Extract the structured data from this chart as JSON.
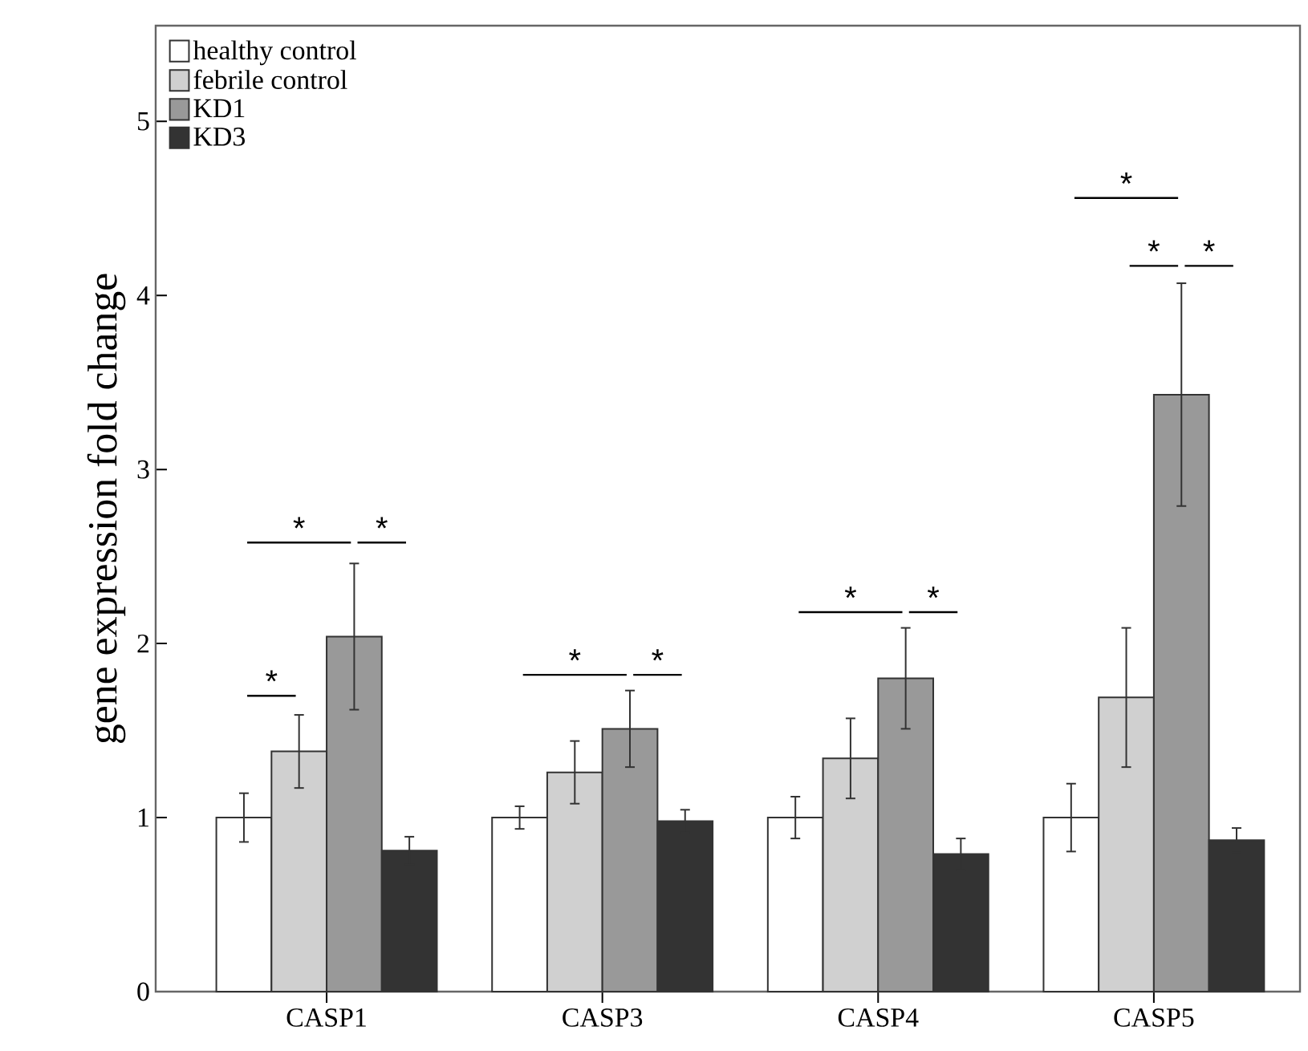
{
  "chart_data": {
    "type": "bar",
    "ylabel": "gene expression fold change",
    "categories": [
      "CASP1",
      "CASP3",
      "CASP4",
      "CASP5"
    ],
    "series": [
      {
        "name": "healthy control",
        "color": "#ffffff",
        "values": [
          1.0,
          1.0,
          1.0,
          1.0
        ],
        "errors": [
          0.14,
          0.065,
          0.12,
          0.195
        ]
      },
      {
        "name": "febrile control",
        "color": "#d0d0d0",
        "values": [
          1.38,
          1.26,
          1.34,
          1.69
        ],
        "errors": [
          0.21,
          0.18,
          0.23,
          0.4
        ]
      },
      {
        "name": "KD1",
        "color": "#999999",
        "values": [
          2.04,
          1.51,
          1.8,
          3.43
        ],
        "errors": [
          0.42,
          0.22,
          0.29,
          0.64
        ]
      },
      {
        "name": "KD3",
        "color": "#333333",
        "values": [
          0.81,
          0.98,
          0.79,
          0.87
        ],
        "errors": [
          0.08,
          0.065,
          0.09,
          0.07
        ]
      }
    ],
    "ylim": [
      0,
      5.55
    ],
    "yticks": [
      0,
      1,
      2,
      3,
      4,
      5
    ],
    "grid": false,
    "legend": "top left",
    "annotations": [
      "*",
      "*",
      "*",
      "*",
      "*",
      "*",
      "*",
      "*",
      "*",
      "*"
    ]
  }
}
